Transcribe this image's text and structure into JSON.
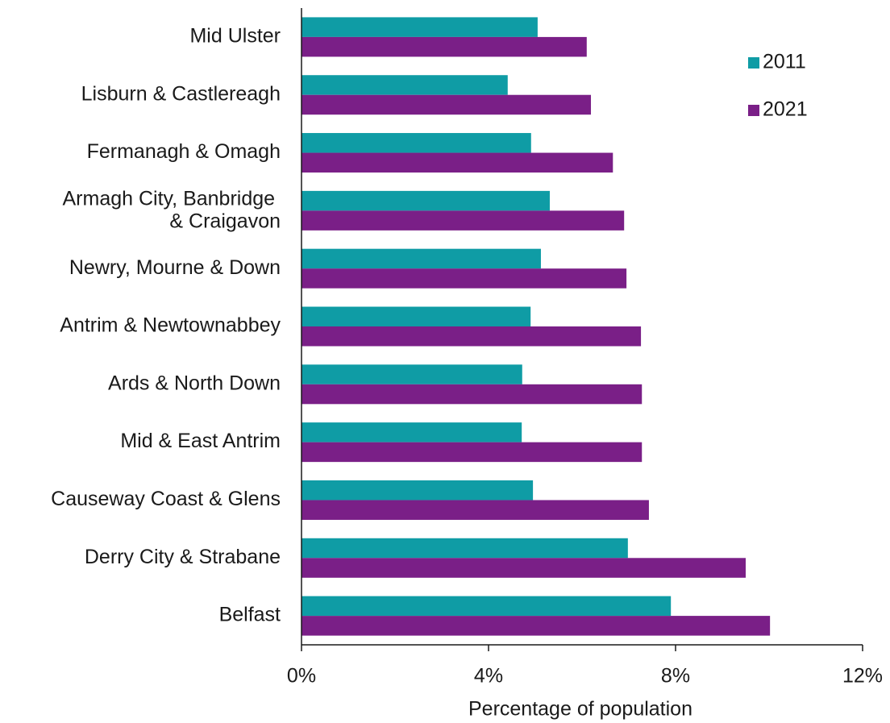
{
  "chart_data": {
    "type": "barh",
    "xlabel": "Percentage of population",
    "categories": [
      "Mid Ulster",
      "Lisburn & Castlereagh",
      "Fermanagh & Omagh",
      "Armagh City, Banbridge & Craigavon",
      "Newry, Mourne & Down",
      "Antrim & Newtownabbey",
      "Ards & North Down",
      "Mid & East Antrim",
      "Causeway Coast & Glens",
      "Derry City & Strabane",
      "Belfast"
    ],
    "series": [
      {
        "name": "2011",
        "color": "#0f9ca5",
        "values": [
          5.05,
          4.41,
          4.91,
          5.31,
          5.12,
          4.9,
          4.72,
          4.71,
          4.95,
          6.98,
          7.9
        ]
      },
      {
        "name": "2021",
        "color": "#7a1f87",
        "values": [
          6.1,
          6.19,
          6.66,
          6.9,
          6.95,
          7.26,
          7.28,
          7.28,
          7.43,
          9.5,
          10.02
        ]
      }
    ],
    "xlim": [
      0,
      12
    ],
    "xticks": [
      {
        "value": 0,
        "label": "0%"
      },
      {
        "value": 4,
        "label": "4%"
      },
      {
        "value": 8,
        "label": "8%"
      },
      {
        "value": 12,
        "label": "12%"
      }
    ],
    "legend": "upper right"
  }
}
